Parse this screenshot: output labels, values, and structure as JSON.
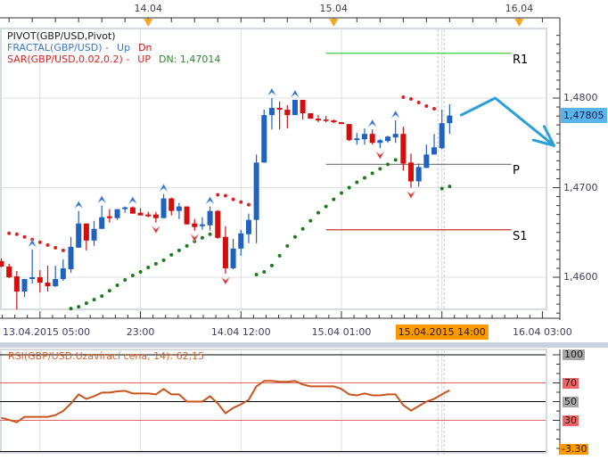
{
  "legend": {
    "pivot": "PIVOT(GBP/USD,Pivot)",
    "fractal_label": "FRACTAL(GBP/USD) -",
    "fractal_up": "Up",
    "fractal_dn": "Dn",
    "sar_label": "SAR(GBP/USD,0.02,0.2) -",
    "sar_up": "UP",
    "sar_dn": "DN: 1,47014"
  },
  "top_axis": {
    "labels": [
      {
        "text": "14.04",
        "idx": 19
      },
      {
        "text": "15.04",
        "idx": 43
      },
      {
        "text": "16.04",
        "idx": 67
      }
    ]
  },
  "bottom_axis": {
    "labels": [
      {
        "text": "13.04.2015 05:00",
        "idx": 0,
        "align": "left"
      },
      {
        "text": "23:00",
        "idx": 18
      },
      {
        "text": "14.04 12:00",
        "idx": 31
      },
      {
        "text": "15.04 01:00",
        "idx": 44
      },
      {
        "text": "15.04.2015 14:00",
        "idx": 57,
        "highlight": true
      },
      {
        "text": "16.04 03:00",
        "idx": 70
      }
    ],
    "grid_idx": [
      5,
      18,
      31,
      44,
      57
    ],
    "selected_idx": 57
  },
  "price_axis": {
    "labels": [
      {
        "text": "1,4800",
        "value": 1.48
      },
      {
        "text": "1,4700",
        "value": 1.47
      },
      {
        "text": "1,4600",
        "value": 1.46
      }
    ],
    "current": {
      "text": "1,47805",
      "value": 1.47805
    }
  },
  "rsi_panel": {
    "title": "RSI(GBP/USD.Uzavírací cena, 14): 62,15",
    "axis_labels": [
      {
        "text": "100",
        "value": 100,
        "bg": "#a6a6a6"
      },
      {
        "text": "70",
        "value": 70,
        "bg": "#f06464"
      },
      {
        "text": "50",
        "value": 50,
        "bg": "#a6a6a6"
      },
      {
        "text": "30",
        "value": 30,
        "bg": "#f06464"
      },
      {
        "text": "-3.30",
        "value": -3.3,
        "bg": "#ff9900"
      }
    ]
  },
  "colors": {
    "bull": "#1f62c0",
    "bear": "#d40d0d",
    "sar_up": "#dd2222",
    "sar_dn": "#1e7b1e",
    "fractal_up": "#2f6fc8",
    "fractal_dn": "#d83030",
    "rsi_line": "#c8551e",
    "rsi_title": "#d2622a",
    "rsi_level": "#e06666",
    "highlight": "#ff9900",
    "current_price": "#5ab4ec",
    "arrow": "#2a9fd8",
    "grid": "#dcdfe3",
    "axis": "#333333",
    "axis_text": "#3c3c5e",
    "marker": "#f5a623",
    "separator": "#c8d3df",
    "legend_pivot": "#1a1a1a",
    "legend_fractal": "#3a76c4",
    "legend_fractal_dn": "#d01010",
    "legend_sar": "#e02020",
    "legend_sar_dn": "#2a8a2a"
  },
  "chart_data": [
    {
      "type": "candlestick",
      "title": "GBP/USD",
      "x_start": "13.04.2015 05:00",
      "ylim": [
        1.4564,
        1.4878
      ],
      "grid": true,
      "ohlc": [
        [
          1.4618,
          1.4621,
          1.4611,
          1.4612
        ],
        [
          1.4612,
          1.4615,
          1.4599,
          1.46
        ],
        [
          1.4601,
          1.4607,
          1.4564,
          1.4584
        ],
        [
          1.4584,
          1.4598,
          1.4578,
          1.4598
        ],
        [
          1.4598,
          1.4631,
          1.4593,
          1.46
        ],
        [
          1.46,
          1.4608,
          1.4583,
          1.4594
        ],
        [
          1.4594,
          1.4613,
          1.4584,
          1.459
        ],
        [
          1.459,
          1.4613,
          1.4589,
          1.4598
        ],
        [
          1.4598,
          1.462,
          1.4596,
          1.461
        ],
        [
          1.4609,
          1.4645,
          1.4605,
          1.4634
        ],
        [
          1.4633,
          1.4674,
          1.4633,
          1.466
        ],
        [
          1.466,
          1.466,
          1.463,
          1.4641
        ],
        [
          1.4641,
          1.4663,
          1.4635,
          1.4654
        ],
        [
          1.4654,
          1.468,
          1.4654,
          1.4667
        ],
        [
          1.4668,
          1.4676,
          1.4661,
          1.4666
        ],
        [
          1.4666,
          1.4676,
          1.4664,
          1.4676
        ],
        [
          1.4676,
          1.4679,
          1.4672,
          1.4678
        ],
        [
          1.4678,
          1.4679,
          1.4671,
          1.4671
        ],
        [
          1.4672,
          1.4677,
          1.4669,
          1.4669
        ],
        [
          1.467,
          1.4673,
          1.4667,
          1.4668
        ],
        [
          1.467,
          1.4673,
          1.4661,
          1.4666
        ],
        [
          1.4666,
          1.4693,
          1.4666,
          1.4688
        ],
        [
          1.4688,
          1.4689,
          1.4669,
          1.4674
        ],
        [
          1.4674,
          1.4683,
          1.4665,
          1.4679
        ],
        [
          1.4679,
          1.4679,
          1.4659,
          1.4659
        ],
        [
          1.466,
          1.4665,
          1.4652,
          1.4656
        ],
        [
          1.4657,
          1.4667,
          1.4653,
          1.4659
        ],
        [
          1.4658,
          1.4679,
          1.4652,
          1.4674
        ],
        [
          1.4674,
          1.4675,
          1.4643,
          1.4644
        ],
        [
          1.4645,
          1.4657,
          1.4604,
          1.461
        ],
        [
          1.461,
          1.4643,
          1.4609,
          1.4632
        ],
        [
          1.4632,
          1.4653,
          1.4624,
          1.4649
        ],
        [
          1.4648,
          1.4671,
          1.4638,
          1.4664
        ],
        [
          1.4664,
          1.4737,
          1.4638,
          1.4728
        ],
        [
          1.4728,
          1.4787,
          1.4728,
          1.4781
        ],
        [
          1.4781,
          1.48,
          1.4765,
          1.4789
        ],
        [
          1.4789,
          1.4796,
          1.4765,
          1.4787
        ],
        [
          1.4787,
          1.4792,
          1.4766,
          1.4781
        ],
        [
          1.4781,
          1.4798,
          1.4781,
          1.4798
        ],
        [
          1.4798,
          1.4798,
          1.4776,
          1.4783
        ],
        [
          1.4783,
          1.4783,
          1.4777,
          1.4777
        ],
        [
          1.4777,
          1.4781,
          1.4773,
          1.4775
        ],
        [
          1.4776,
          1.478,
          1.4773,
          1.4775
        ],
        [
          1.4775,
          1.4776,
          1.4772,
          1.4773
        ],
        [
          1.4773,
          1.4773,
          1.4771,
          1.4771
        ],
        [
          1.4771,
          1.4771,
          1.4752,
          1.4753
        ],
        [
          1.4753,
          1.4761,
          1.4748,
          1.4755
        ],
        [
          1.4754,
          1.4766,
          1.4748,
          1.476
        ],
        [
          1.476,
          1.4765,
          1.4748,
          1.475
        ],
        [
          1.475,
          1.4754,
          1.4744,
          1.4753
        ],
        [
          1.4752,
          1.4758,
          1.475,
          1.4757
        ],
        [
          1.4756,
          1.4775,
          1.475,
          1.476
        ],
        [
          1.476,
          1.4768,
          1.4719,
          1.4727
        ],
        [
          1.4728,
          1.4738,
          1.47,
          1.4707
        ],
        [
          1.4707,
          1.4727,
          1.4701,
          1.4723
        ],
        [
          1.4722,
          1.4748,
          1.4722,
          1.4737
        ],
        [
          1.4737,
          1.476,
          1.4737,
          1.4745
        ],
        [
          1.4744,
          1.4787,
          1.4743,
          1.4772
        ],
        [
          1.4772,
          1.4793,
          1.476,
          1.47805
        ]
      ],
      "sar": {
        "name": "SAR(GBP/USD,0.02,0.2)",
        "up": [
          [
            1,
            1.4649
          ],
          [
            2,
            1.4648
          ],
          [
            3,
            1.4645
          ],
          [
            4,
            1.4642
          ],
          [
            5,
            1.4639
          ],
          [
            6,
            1.4636
          ],
          [
            7,
            1.4633
          ],
          [
            8,
            1.463
          ],
          [
            28,
            1.4692
          ],
          [
            29,
            1.4691
          ],
          [
            30,
            1.4687
          ],
          [
            31,
            1.4684
          ],
          [
            32,
            1.4681
          ],
          [
            52,
            1.4801
          ],
          [
            53,
            1.4799
          ],
          [
            54,
            1.4795
          ],
          [
            55,
            1.4791
          ],
          [
            56,
            1.4788
          ]
        ],
        "dn": [
          [
            9,
            1.4565
          ],
          [
            10,
            1.4567
          ],
          [
            11,
            1.4571
          ],
          [
            12,
            1.4575
          ],
          [
            13,
            1.4579
          ],
          [
            14,
            1.4585
          ],
          [
            15,
            1.4591
          ],
          [
            16,
            1.4597
          ],
          [
            17,
            1.4602
          ],
          [
            18,
            1.4606
          ],
          [
            19,
            1.4611
          ],
          [
            20,
            1.4615
          ],
          [
            21,
            1.4619
          ],
          [
            22,
            1.4625
          ],
          [
            23,
            1.463
          ],
          [
            24,
            1.4635
          ],
          [
            25,
            1.464
          ],
          [
            26,
            1.4644
          ],
          [
            27,
            1.4648
          ],
          [
            33,
            1.4603
          ],
          [
            34,
            1.4606
          ],
          [
            35,
            1.4613
          ],
          [
            36,
            1.4624
          ],
          [
            37,
            1.4635
          ],
          [
            38,
            1.4645
          ],
          [
            39,
            1.4654
          ],
          [
            40,
            1.4663
          ],
          [
            41,
            1.4672
          ],
          [
            42,
            1.4679
          ],
          [
            43,
            1.4687
          ],
          [
            44,
            1.4694
          ],
          [
            45,
            1.47
          ],
          [
            46,
            1.4706
          ],
          [
            47,
            1.4711
          ],
          [
            48,
            1.4716
          ],
          [
            49,
            1.4721
          ],
          [
            50,
            1.4726
          ],
          [
            51,
            1.4731
          ],
          [
            57,
            1.4699
          ],
          [
            58,
            1.47014
          ]
        ]
      },
      "fractals": {
        "name": "FRACTAL(GBP/USD)",
        "up_idx": [
          4,
          10,
          13,
          17,
          21,
          27,
          35,
          38,
          48,
          51
        ],
        "dn_idx": [
          20,
          25,
          29,
          49,
          53
        ]
      },
      "pivot": [
        {
          "name": "R1",
          "value": 1.485,
          "color": "#3fcf3f",
          "start_idx": 42,
          "end_idx": 66
        },
        {
          "name": "P",
          "value": 1.4726,
          "color": "#808080",
          "start_idx": 42,
          "end_idx": 66
        },
        {
          "name": "S1",
          "value": 1.4653,
          "color": "#c83030",
          "start_idx": 42,
          "end_idx": 66
        }
      ],
      "annotation_arrow": [
        [
          59.5,
          1.4781
        ],
        [
          63.9,
          1.48
        ],
        [
          71.5,
          1.4747
        ]
      ],
      "last": 1.47805
    },
    {
      "type": "line",
      "title": "RSI(GBP/USD.Uzavírací cena, 14)",
      "ylim": [
        -3.3,
        100
      ],
      "levels": [
        100,
        70,
        50,
        30,
        -3.3
      ],
      "values": [
        32.7,
        30.5,
        27.9,
        33.7,
        33.7,
        33.7,
        33.7,
        35.6,
        40.0,
        48.0,
        57.7,
        52.9,
        55.8,
        59.6,
        59.6,
        61.0,
        61.5,
        58.7,
        58.7,
        58.7,
        57.7,
        63.5,
        57.7,
        57.7,
        50.0,
        50.0,
        50.0,
        55.8,
        48.1,
        37.5,
        43.3,
        47.1,
        51.9,
        66.3,
        72.1,
        72.1,
        71.2,
        71.2,
        72.1,
        68.3,
        66.3,
        66.3,
        66.3,
        66.3,
        63.5,
        57.7,
        56.7,
        58.7,
        56.7,
        56.7,
        57.7,
        57.7,
        46.2,
        40.4,
        45.2,
        50.0,
        52.9,
        57.7,
        62.15
      ],
      "last": 62.15
    }
  ]
}
